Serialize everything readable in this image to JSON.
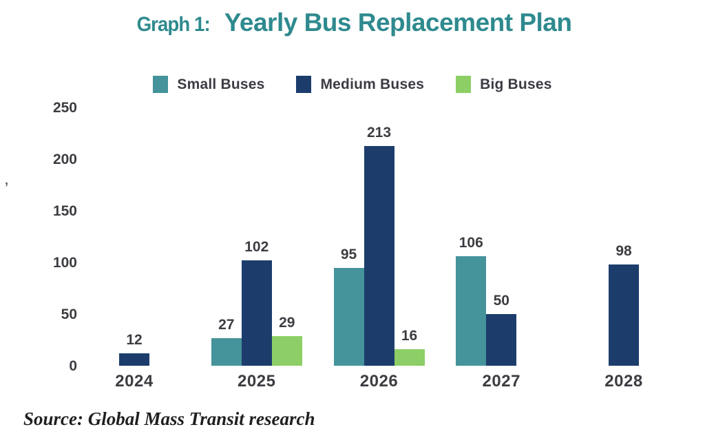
{
  "title": {
    "prefix": "Graph 1:",
    "main": "Yearly Bus Replacement Plan"
  },
  "colors": {
    "title": "#2e8a8e",
    "small_buses": "#45939b",
    "medium_buses": "#1c3d6c",
    "big_buses": "#8dcf66",
    "text": "#3c3c42"
  },
  "chart_data": {
    "type": "bar",
    "title": "Graph 1: Yearly Bus Replacement Plan",
    "categories": [
      "2024",
      "2025",
      "2026",
      "2027",
      "2028"
    ],
    "series": [
      {
        "name": "Small Buses",
        "color_key": "small_buses",
        "values": [
          null,
          27,
          95,
          106,
          null
        ]
      },
      {
        "name": "Medium Buses",
        "color_key": "medium_buses",
        "values": [
          12,
          102,
          213,
          50,
          98
        ]
      },
      {
        "name": "Big Buses",
        "color_key": "big_buses",
        "values": [
          null,
          29,
          16,
          null,
          null
        ]
      }
    ],
    "xlabel": "",
    "ylabel": "",
    "ylim": [
      0,
      250
    ],
    "yticks": [
      0,
      50,
      100,
      150,
      200,
      250
    ],
    "grid": false,
    "legend_position": "top",
    "value_labels": true
  },
  "source": {
    "text": "Source: Global Mass Transit research"
  },
  "artifact": {
    "text": "’"
  }
}
